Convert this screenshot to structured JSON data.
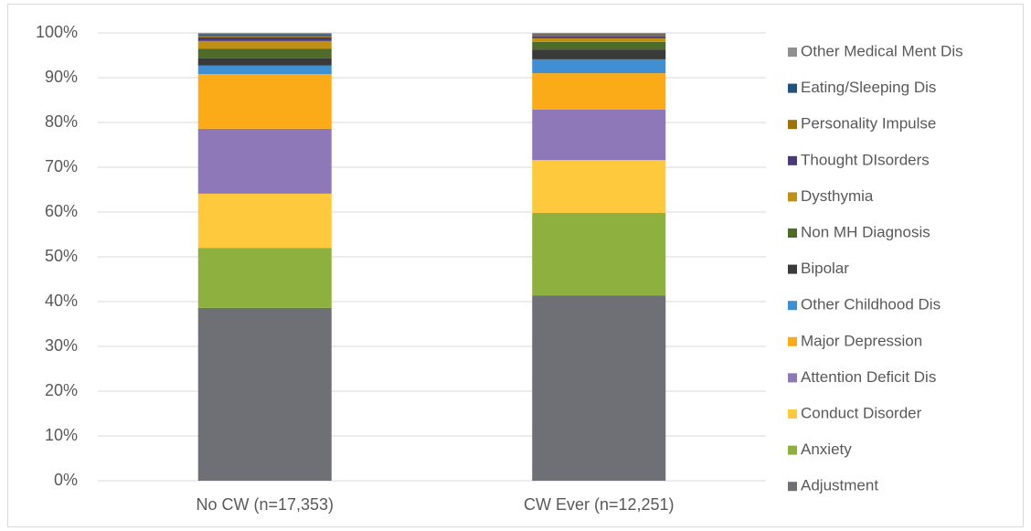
{
  "chart_data": {
    "type": "stacked_bar",
    "categories": [
      "No CW (n=17,353)",
      "CW Ever (n=12,251)"
    ],
    "series": [
      {
        "name": "Adjustment",
        "color": "#6f6f76",
        "values": [
          38.6,
          41.4
        ]
      },
      {
        "name": "Anxiety",
        "color": "#8db03f",
        "values": [
          13.4,
          18.4
        ]
      },
      {
        "name": "Conduct Disorder",
        "color": "#fec93c",
        "values": [
          12.1,
          11.8
        ]
      },
      {
        "name": "Attention Deficit Dis",
        "color": "#8e78b8",
        "values": [
          14.5,
          11.3
        ]
      },
      {
        "name": "Major Depression",
        "color": "#fbab18",
        "values": [
          12.2,
          8.1
        ]
      },
      {
        "name": "Other Childhood Dis",
        "color": "#3f8fd2",
        "values": [
          1.9,
          3.1
        ]
      },
      {
        "name": "Bipolar",
        "color": "#3a3a3a",
        "values": [
          1.6,
          2.2
        ]
      },
      {
        "name": "Non MH Diagnosis",
        "color": "#4e6b2a",
        "values": [
          2.2,
          1.7
        ]
      },
      {
        "name": "Dysthymia",
        "color": "#c09014",
        "values": [
          1.7,
          0.8
        ]
      },
      {
        "name": "Thought DIsorders",
        "color": "#4a3a78",
        "values": [
          0.8,
          0.4
        ]
      },
      {
        "name": "Personality Impulse",
        "color": "#a0700a",
        "values": [
          0.4,
          0.3
        ]
      },
      {
        "name": "Eating/Sleeping Dis",
        "color": "#24527e",
        "values": [
          0.3,
          0.2
        ]
      },
      {
        "name": "Other Medical Ment Dis",
        "color": "#909090",
        "values": [
          0.3,
          0.3
        ]
      }
    ],
    "ylim": [
      0,
      100
    ],
    "yticks": [
      {
        "value": 0,
        "label": "0%"
      },
      {
        "value": 10,
        "label": "10%"
      },
      {
        "value": 20,
        "label": "20%"
      },
      {
        "value": 30,
        "label": "30%"
      },
      {
        "value": 40,
        "label": "40%"
      },
      {
        "value": 50,
        "label": "50%"
      },
      {
        "value": 60,
        "label": "60%"
      },
      {
        "value": 70,
        "label": "70%"
      },
      {
        "value": 80,
        "label": "80%"
      },
      {
        "value": 90,
        "label": "90%"
      },
      {
        "value": 100,
        "label": "100%"
      }
    ],
    "grid": true,
    "legend": "right"
  }
}
